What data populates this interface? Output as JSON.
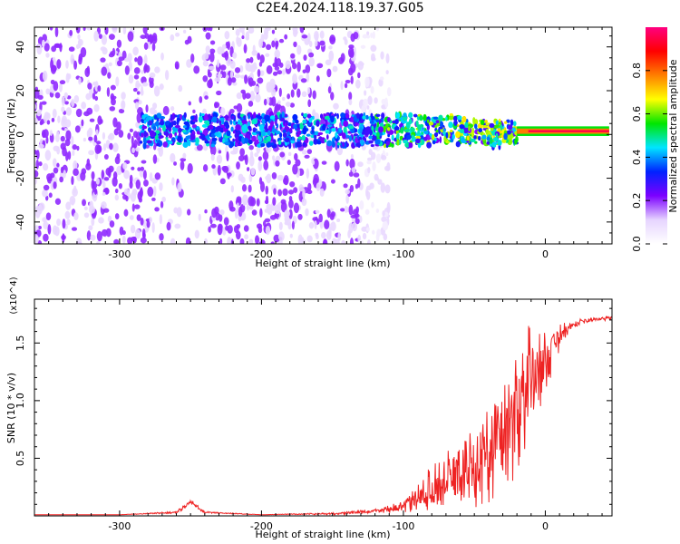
{
  "figure_title": "C2E4.2024.118.19.37.G05",
  "colors": {
    "snr_line": "#ee2222",
    "colormap": [
      "#ffffff",
      "#e6d4ff",
      "#7b00ff",
      "#0022ff",
      "#00e5ff",
      "#00e600",
      "#ffff00",
      "#ff7f00",
      "#ff0000",
      "#ff0080"
    ]
  },
  "chart_data": [
    {
      "type": "heatmap",
      "xlabel": "Height of straight line (km)",
      "ylabel": "Frequency (Hz)",
      "xlim": [
        -360,
        47
      ],
      "ylim": [
        -50,
        49
      ],
      "xticks": [
        -300,
        -200,
        -100,
        0
      ],
      "xtick_labels": [
        "-300",
        "-200",
        "-100",
        "0"
      ],
      "yticks": [
        -40,
        -20,
        0,
        20,
        40
      ],
      "ytick_labels": [
        "-40",
        "-20",
        "0",
        "20",
        "40"
      ],
      "colorbar": {
        "label": "Normalized spectral amplitude",
        "range": [
          0,
          1
        ],
        "ticks": [
          0.0,
          0.2,
          0.4,
          0.6,
          0.8
        ],
        "tick_labels": [
          "0.0",
          "0.2",
          "0.4",
          "0.6",
          "0.8"
        ]
      },
      "features": [
        {
          "description": "scattered weak noise",
          "x_range": [
            -360,
            -110
          ],
          "y_range": [
            -50,
            49
          ],
          "amplitude": 0.15
        },
        {
          "description": "signal band",
          "x_range": [
            -285,
            -20
          ],
          "y_center": 2,
          "y_halfwidth": 6,
          "amplitude": 0.35
        },
        {
          "description": "strong converging carrier",
          "x_range": [
            -20,
            45
          ],
          "y_center": 1.5,
          "y_halfwidth": 1,
          "amplitude": 0.95
        }
      ]
    },
    {
      "type": "line",
      "xlabel": "Height of straight line (km)",
      "ylabel": "SNR (10 * v/v)",
      "y_multiplier": "(x10^4)",
      "xlim": [
        -360,
        47
      ],
      "ylim": [
        0.0,
        1.88
      ],
      "xticks": [
        -300,
        -200,
        -100,
        0
      ],
      "xtick_labels": [
        "-300",
        "-200",
        "-100",
        "0"
      ],
      "yticks": [
        0.5,
        1.0,
        1.5
      ],
      "ytick_labels": [
        "0.5",
        "1.0",
        "1.5"
      ],
      "series": [
        {
          "x": [
            -360,
            -300,
            -260,
            -250,
            -240,
            -200,
            -150,
            -120,
            -100,
            -90,
            -80,
            -70,
            -60,
            -50,
            -40,
            -30,
            -20,
            -15,
            -10,
            -5,
            0,
            5,
            10,
            15,
            20,
            30,
            40,
            47
          ],
          "y": [
            0.01,
            0.01,
            0.03,
            0.12,
            0.03,
            0.01,
            0.02,
            0.04,
            0.08,
            0.15,
            0.25,
            0.3,
            0.35,
            0.45,
            0.55,
            0.7,
            0.9,
            1.1,
            1.2,
            1.25,
            1.35,
            1.45,
            1.55,
            1.62,
            1.66,
            1.7,
            1.71,
            1.72
          ],
          "spread": [
            0.0,
            0.0,
            0.01,
            0.03,
            0.01,
            0.0,
            0.01,
            0.02,
            0.05,
            0.12,
            0.2,
            0.25,
            0.3,
            0.38,
            0.45,
            0.55,
            0.6,
            0.55,
            0.45,
            0.35,
            0.3,
            0.2,
            0.12,
            0.06,
            0.04,
            0.02,
            0.02,
            0.02
          ]
        }
      ]
    }
  ]
}
